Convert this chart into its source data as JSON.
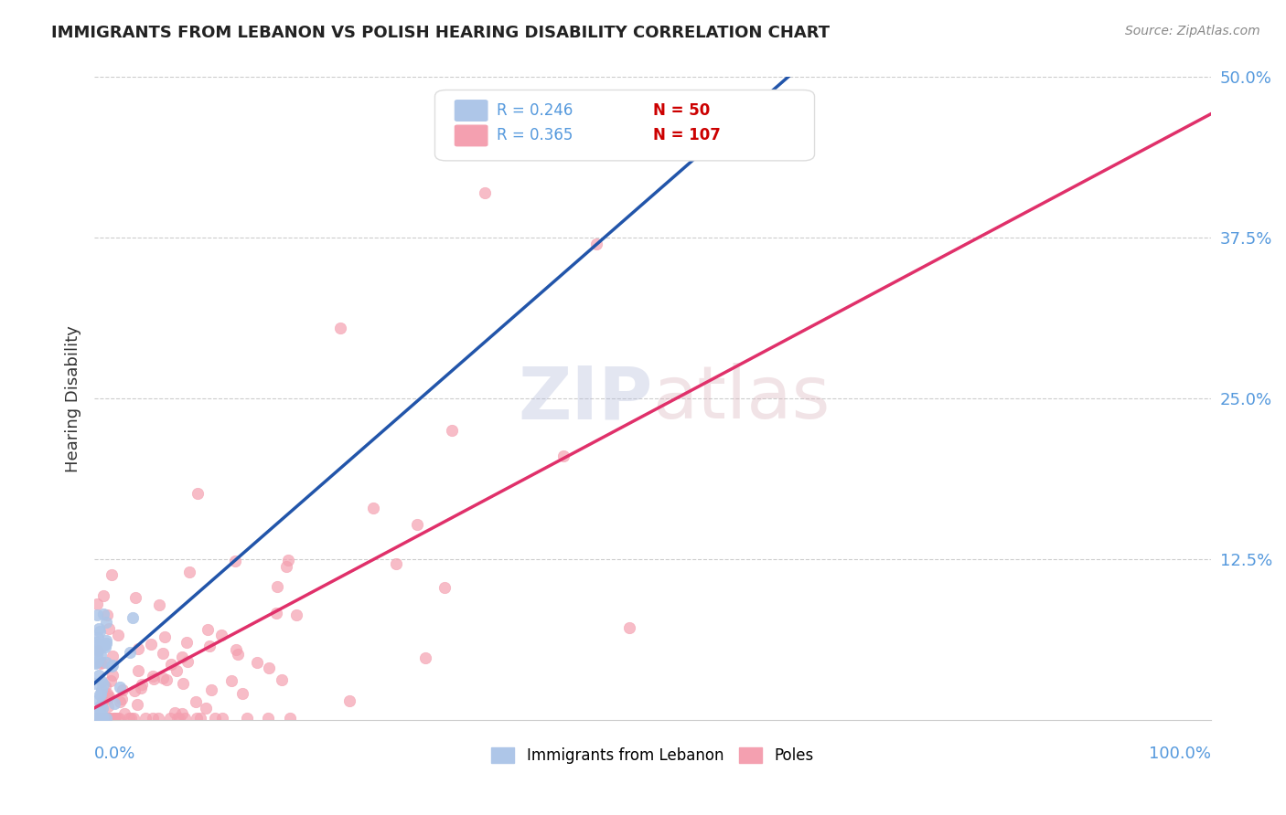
{
  "title": "IMMIGRANTS FROM LEBANON VS POLISH HEARING DISABILITY CORRELATION CHART",
  "source": "Source: ZipAtlas.com",
  "ylabel": "Hearing Disability",
  "xlim": [
    0.0,
    1.0
  ],
  "ylim": [
    0.0,
    0.5
  ],
  "series": [
    {
      "name": "Immigrants from Lebanon",
      "R": 0.246,
      "N": 50,
      "color": "#aec6e8",
      "line_color": "#2255aa"
    },
    {
      "name": "Poles",
      "R": 0.365,
      "N": 107,
      "color": "#f4a0b0",
      "line_color": "#e0306a"
    }
  ],
  "grid_color": "#cccccc",
  "background_color": "#ffffff",
  "title_color": "#222222",
  "source_color": "#888888",
  "axis_label_color": "#5599dd",
  "legend_R_color": "#5599dd",
  "legend_N_color": "#cc0000"
}
